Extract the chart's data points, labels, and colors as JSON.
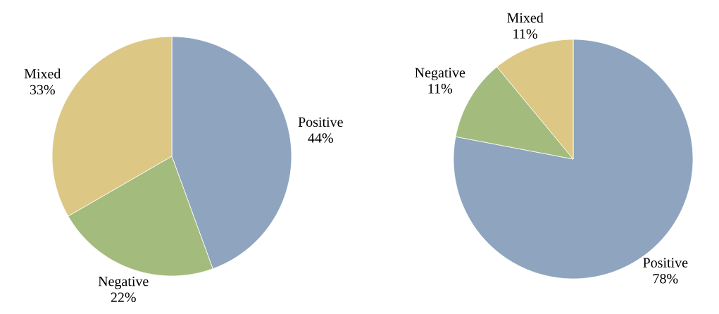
{
  "chart_data": [
    {
      "type": "pie",
      "categories": [
        "Positive",
        "Negative",
        "Mixed"
      ],
      "values": [
        44,
        22,
        33
      ],
      "value_labels": [
        "44%",
        "22%",
        "33%"
      ],
      "colors": [
        "#8ea4bf",
        "#a3bb7c",
        "#dcc785"
      ]
    },
    {
      "type": "pie",
      "categories": [
        "Positive",
        "Negative",
        "Mixed"
      ],
      "values": [
        78,
        11,
        11
      ],
      "value_labels": [
        "78%",
        "11%",
        "11%"
      ],
      "colors": [
        "#8ea4bf",
        "#a3bb7c",
        "#dcc785"
      ]
    }
  ]
}
